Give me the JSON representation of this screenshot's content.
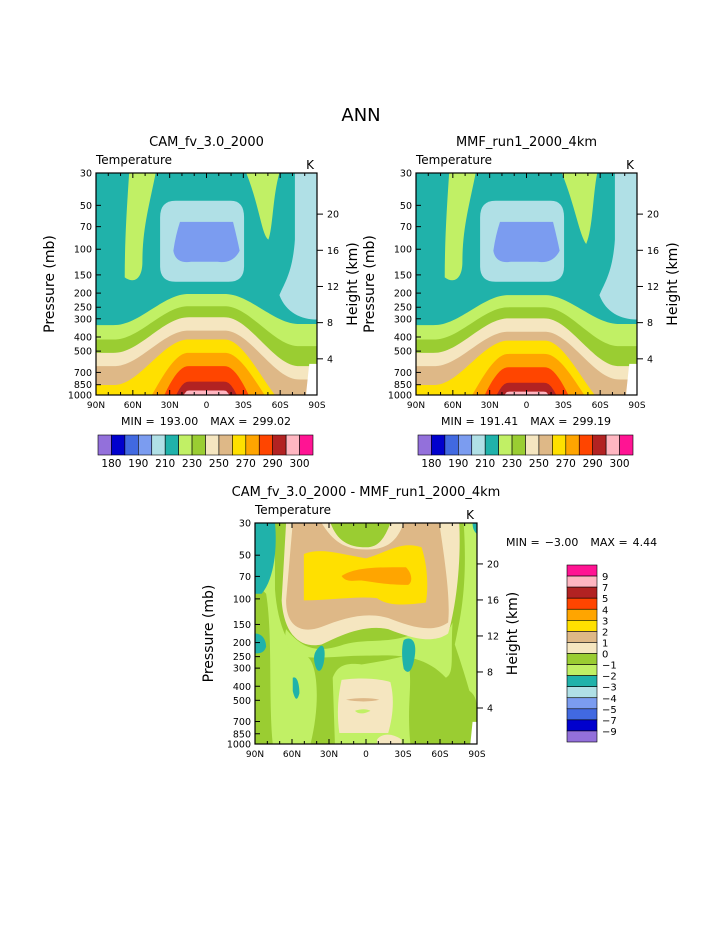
{
  "title": "ANN",
  "chart_data": [
    {
      "type": "contour",
      "title": "CAM_fv_3.0_2000",
      "variable": "Temperature",
      "units": "K",
      "min_label": "MIN =",
      "min": "193.00",
      "max_label": "MAX =",
      "max": "299.02",
      "ylabel": "Pressure (mb)",
      "ylabel_right": "Height (km)",
      "x_ticks": [
        "90N",
        "60N",
        "30N",
        "0",
        "30S",
        "60S",
        "90S"
      ],
      "y_ticks": [
        "30",
        "50",
        "70",
        "100",
        "150",
        "200",
        "250",
        "300",
        "400",
        "500",
        "700",
        "850",
        "1000"
      ],
      "y2_ticks": [
        "20",
        "16",
        "12",
        "8",
        "4"
      ],
      "colorbar": {
        "orientation": "horizontal",
        "colors": [
          "#9370DB",
          "#0000CD",
          "#4169E1",
          "#7B9CF0",
          "#B0E0E6",
          "#20B2AA",
          "#C1F065",
          "#9ACD32",
          "#F5E6C0",
          "#DEB887",
          "#FFE000",
          "#FFA500",
          "#FF4500",
          "#B22222",
          "#FFB6C1",
          "#FF1493"
        ],
        "labels": [
          "180",
          "",
          "190",
          "",
          "210",
          "",
          "230",
          "",
          "250",
          "",
          "270",
          "",
          "290",
          "",
          "300"
        ]
      }
    },
    {
      "type": "contour",
      "title": "MMF_run1_2000_4km",
      "variable": "Temperature",
      "units": "K",
      "min_label": "MIN =",
      "min": "191.41",
      "max_label": "MAX =",
      "max": "299.19",
      "ylabel": "Pressure (mb)",
      "ylabel_right": "Height (km)",
      "x_ticks": [
        "90N",
        "60N",
        "30N",
        "0",
        "30S",
        "60S",
        "90S"
      ],
      "y_ticks": [
        "30",
        "50",
        "70",
        "100",
        "150",
        "200",
        "250",
        "300",
        "400",
        "500",
        "700",
        "850",
        "1000"
      ],
      "y2_ticks": [
        "20",
        "16",
        "12",
        "8",
        "4"
      ],
      "colorbar": {
        "orientation": "horizontal",
        "colors": [
          "#9370DB",
          "#0000CD",
          "#4169E1",
          "#7B9CF0",
          "#B0E0E6",
          "#20B2AA",
          "#C1F065",
          "#9ACD32",
          "#F5E6C0",
          "#DEB887",
          "#FFE000",
          "#FFA500",
          "#FF4500",
          "#B22222",
          "#FFB6C1",
          "#FF1493"
        ],
        "labels": [
          "180",
          "",
          "190",
          "",
          "210",
          "",
          "230",
          "",
          "250",
          "",
          "270",
          "",
          "290",
          "",
          "300"
        ]
      }
    },
    {
      "type": "contour",
      "title": "CAM_fv_3.0_2000 - MMF_run1_2000_4km",
      "variable": "Temperature",
      "units": "K",
      "min_label": "MIN =",
      "min": "-3.00",
      "max_label": "MAX =",
      "max": "4.44",
      "ylabel": "Pressure (mb)",
      "ylabel_right": "Height (km)",
      "x_ticks": [
        "90N",
        "60N",
        "30N",
        "0",
        "30S",
        "60S",
        "90S"
      ],
      "y_ticks": [
        "30",
        "50",
        "70",
        "100",
        "150",
        "200",
        "250",
        "300",
        "400",
        "500",
        "700",
        "850",
        "1000"
      ],
      "y2_ticks": [
        "20",
        "16",
        "12",
        "8",
        "4"
      ],
      "colorbar": {
        "orientation": "vertical",
        "colors": [
          "#FF1493",
          "#FFB6C1",
          "#B22222",
          "#FF4500",
          "#FFA500",
          "#FFE000",
          "#DEB887",
          "#F5E6C0",
          "#9ACD32",
          "#C1F065",
          "#20B2AA",
          "#B0E0E6",
          "#7B9CF0",
          "#4169E1",
          "#0000CD",
          "#9370DB"
        ],
        "labels": [
          "9",
          "7",
          "5",
          "4",
          "3",
          "2",
          "1",
          "0",
          "-1",
          "-2",
          "-3",
          "-4",
          "-5",
          "-7",
          "-9"
        ]
      }
    }
  ]
}
